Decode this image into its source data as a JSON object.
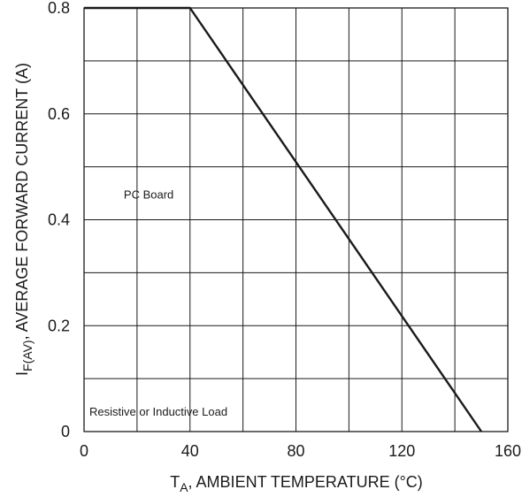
{
  "chart_data": {
    "type": "line",
    "xlabel_sym": "T",
    "xlabel_sub": "A",
    "xlabel_rest": ", AMBIENT TEMPERATURE (°C)",
    "ylabel_sym": "I",
    "ylabel_sub": "F(AV)",
    "ylabel_rest": ", AVERAGE FORWARD CURRENT (A)",
    "xlim": [
      0,
      160
    ],
    "ylim": [
      0,
      0.8
    ],
    "x_grid_step": 20,
    "y_grid_step": 0.1,
    "x_ticks": [
      0,
      40,
      80,
      120,
      160
    ],
    "x_tick_labels": [
      "0",
      "40",
      "80",
      "120",
      "160"
    ],
    "y_ticks": [
      0,
      0.2,
      0.4,
      0.6,
      0.8
    ],
    "y_tick_labels": [
      "0",
      "0.2",
      "0.4",
      "0.6",
      "0.8"
    ],
    "grid": true,
    "series": [
      {
        "x": [
          0,
          40,
          150
        ],
        "y": [
          0.8,
          0.8,
          0
        ]
      }
    ],
    "annotations": [
      {
        "text": "PC Board",
        "x": 15,
        "y": 0.44
      },
      {
        "text": "Resistive or Inductive Load",
        "x": 2,
        "y": 0.03
      }
    ]
  }
}
